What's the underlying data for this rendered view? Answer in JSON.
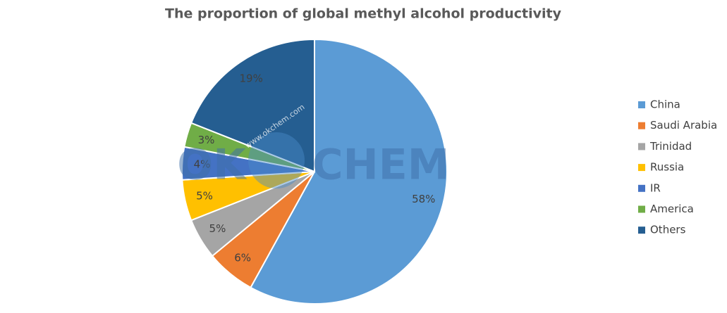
{
  "chart_data": {
    "type": "pie",
    "title": "The proportion of global methyl alcohol productivity",
    "categories": [
      "China",
      "Saudi Arabia",
      "Trinidad",
      "Russia",
      "IR",
      "America",
      "Others"
    ],
    "values": [
      58,
      6,
      5,
      5,
      4,
      3,
      19
    ],
    "value_labels": [
      "58%",
      "6%",
      "5%",
      "5%",
      "4%",
      "3%",
      "19%"
    ],
    "colors": [
      "#5b9bd5",
      "#ed7d31",
      "#a5a5a5",
      "#ffc000",
      "#4472c4",
      "#70ad47",
      "#255e91"
    ],
    "legend": "right"
  },
  "watermark": {
    "left": "OK",
    "right": "CHEM",
    "url": "www.okchem.com"
  }
}
